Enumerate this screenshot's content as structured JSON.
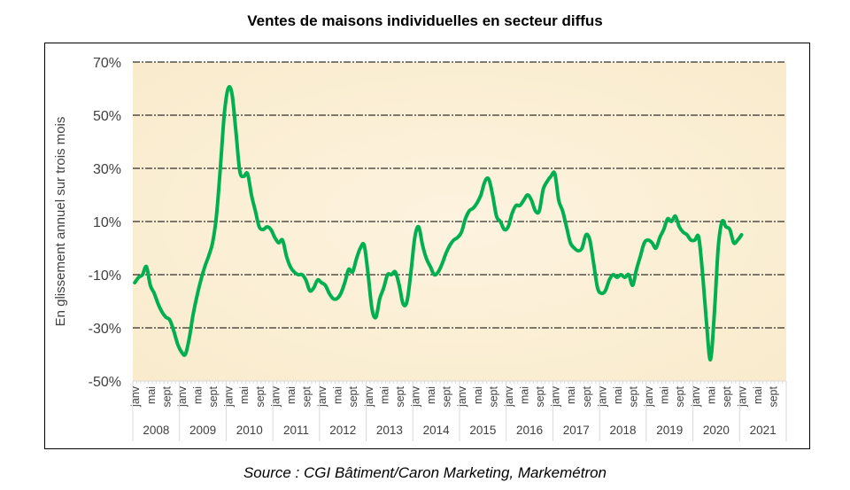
{
  "chart_data": {
    "type": "line",
    "title": "Ventes de maisons individuelles en secteur diffus",
    "ylabel": "En glissement annuel sur trois mois",
    "xlabel": "",
    "source": "Source : CGI Bâtiment/Caron Marketing, Markemétron",
    "ylim": [
      -50,
      70
    ],
    "yticks": [
      70,
      50,
      30,
      10,
      -10,
      -30,
      -50
    ],
    "ytick_labels": [
      "70%",
      "50%",
      "30%",
      "10%",
      "-10%",
      "-30%",
      "-50%"
    ],
    "grid": true,
    "legend": "none",
    "years": [
      "2008",
      "2009",
      "2010",
      "2011",
      "2012",
      "2013",
      "2014",
      "2015",
      "2016",
      "2017",
      "2018",
      "2019",
      "2020",
      "2021"
    ],
    "month_labels": [
      "janv",
      "mai",
      "sept"
    ],
    "colors": {
      "line": "#00b050",
      "plot_bg": "#fbefd6",
      "grid": "#000000"
    },
    "series": [
      {
        "name": "Ventes de maisons individuelles",
        "start": "2008-01",
        "frequency": "monthly",
        "values": [
          -13,
          -11,
          -10,
          -7,
          -14,
          -17,
          -21,
          -24,
          -26,
          -27,
          -31,
          -36,
          -39,
          -40,
          -34,
          -25,
          -18,
          -12,
          -7,
          -3,
          2,
          12,
          30,
          50,
          60,
          58,
          44,
          29,
          27,
          28,
          20,
          14,
          8,
          7,
          8,
          7,
          4,
          2,
          3,
          -3,
          -7,
          -9,
          -10,
          -10,
          -12,
          -16,
          -15,
          -12,
          -13,
          -14,
          -17,
          -19,
          -19,
          -17,
          -13,
          -8,
          -9,
          -4,
          0,
          1,
          -10,
          -23,
          -26,
          -19,
          -15,
          -10,
          -10,
          -9,
          -14,
          -21,
          -20,
          -9,
          4,
          8,
          1,
          -4,
          -7,
          -10,
          -9,
          -6,
          -2,
          1,
          3,
          4,
          6,
          11,
          14,
          15,
          17,
          20,
          25,
          26,
          20,
          12,
          10,
          7,
          8,
          13,
          16,
          16,
          18,
          20,
          18,
          14,
          14,
          22,
          25,
          27,
          28,
          18,
          14,
          8,
          2,
          0,
          -1,
          0,
          5,
          3,
          -6,
          -15,
          -17,
          -16,
          -12,
          -10,
          -11,
          -10,
          -11,
          -10,
          -14,
          -8,
          -3,
          2,
          3,
          2,
          0,
          4,
          7,
          11,
          10,
          12,
          8,
          6,
          5,
          3,
          3,
          4,
          -10,
          -28,
          -42,
          -25,
          0,
          10,
          8,
          7,
          2,
          3,
          5
        ]
      }
    ]
  }
}
